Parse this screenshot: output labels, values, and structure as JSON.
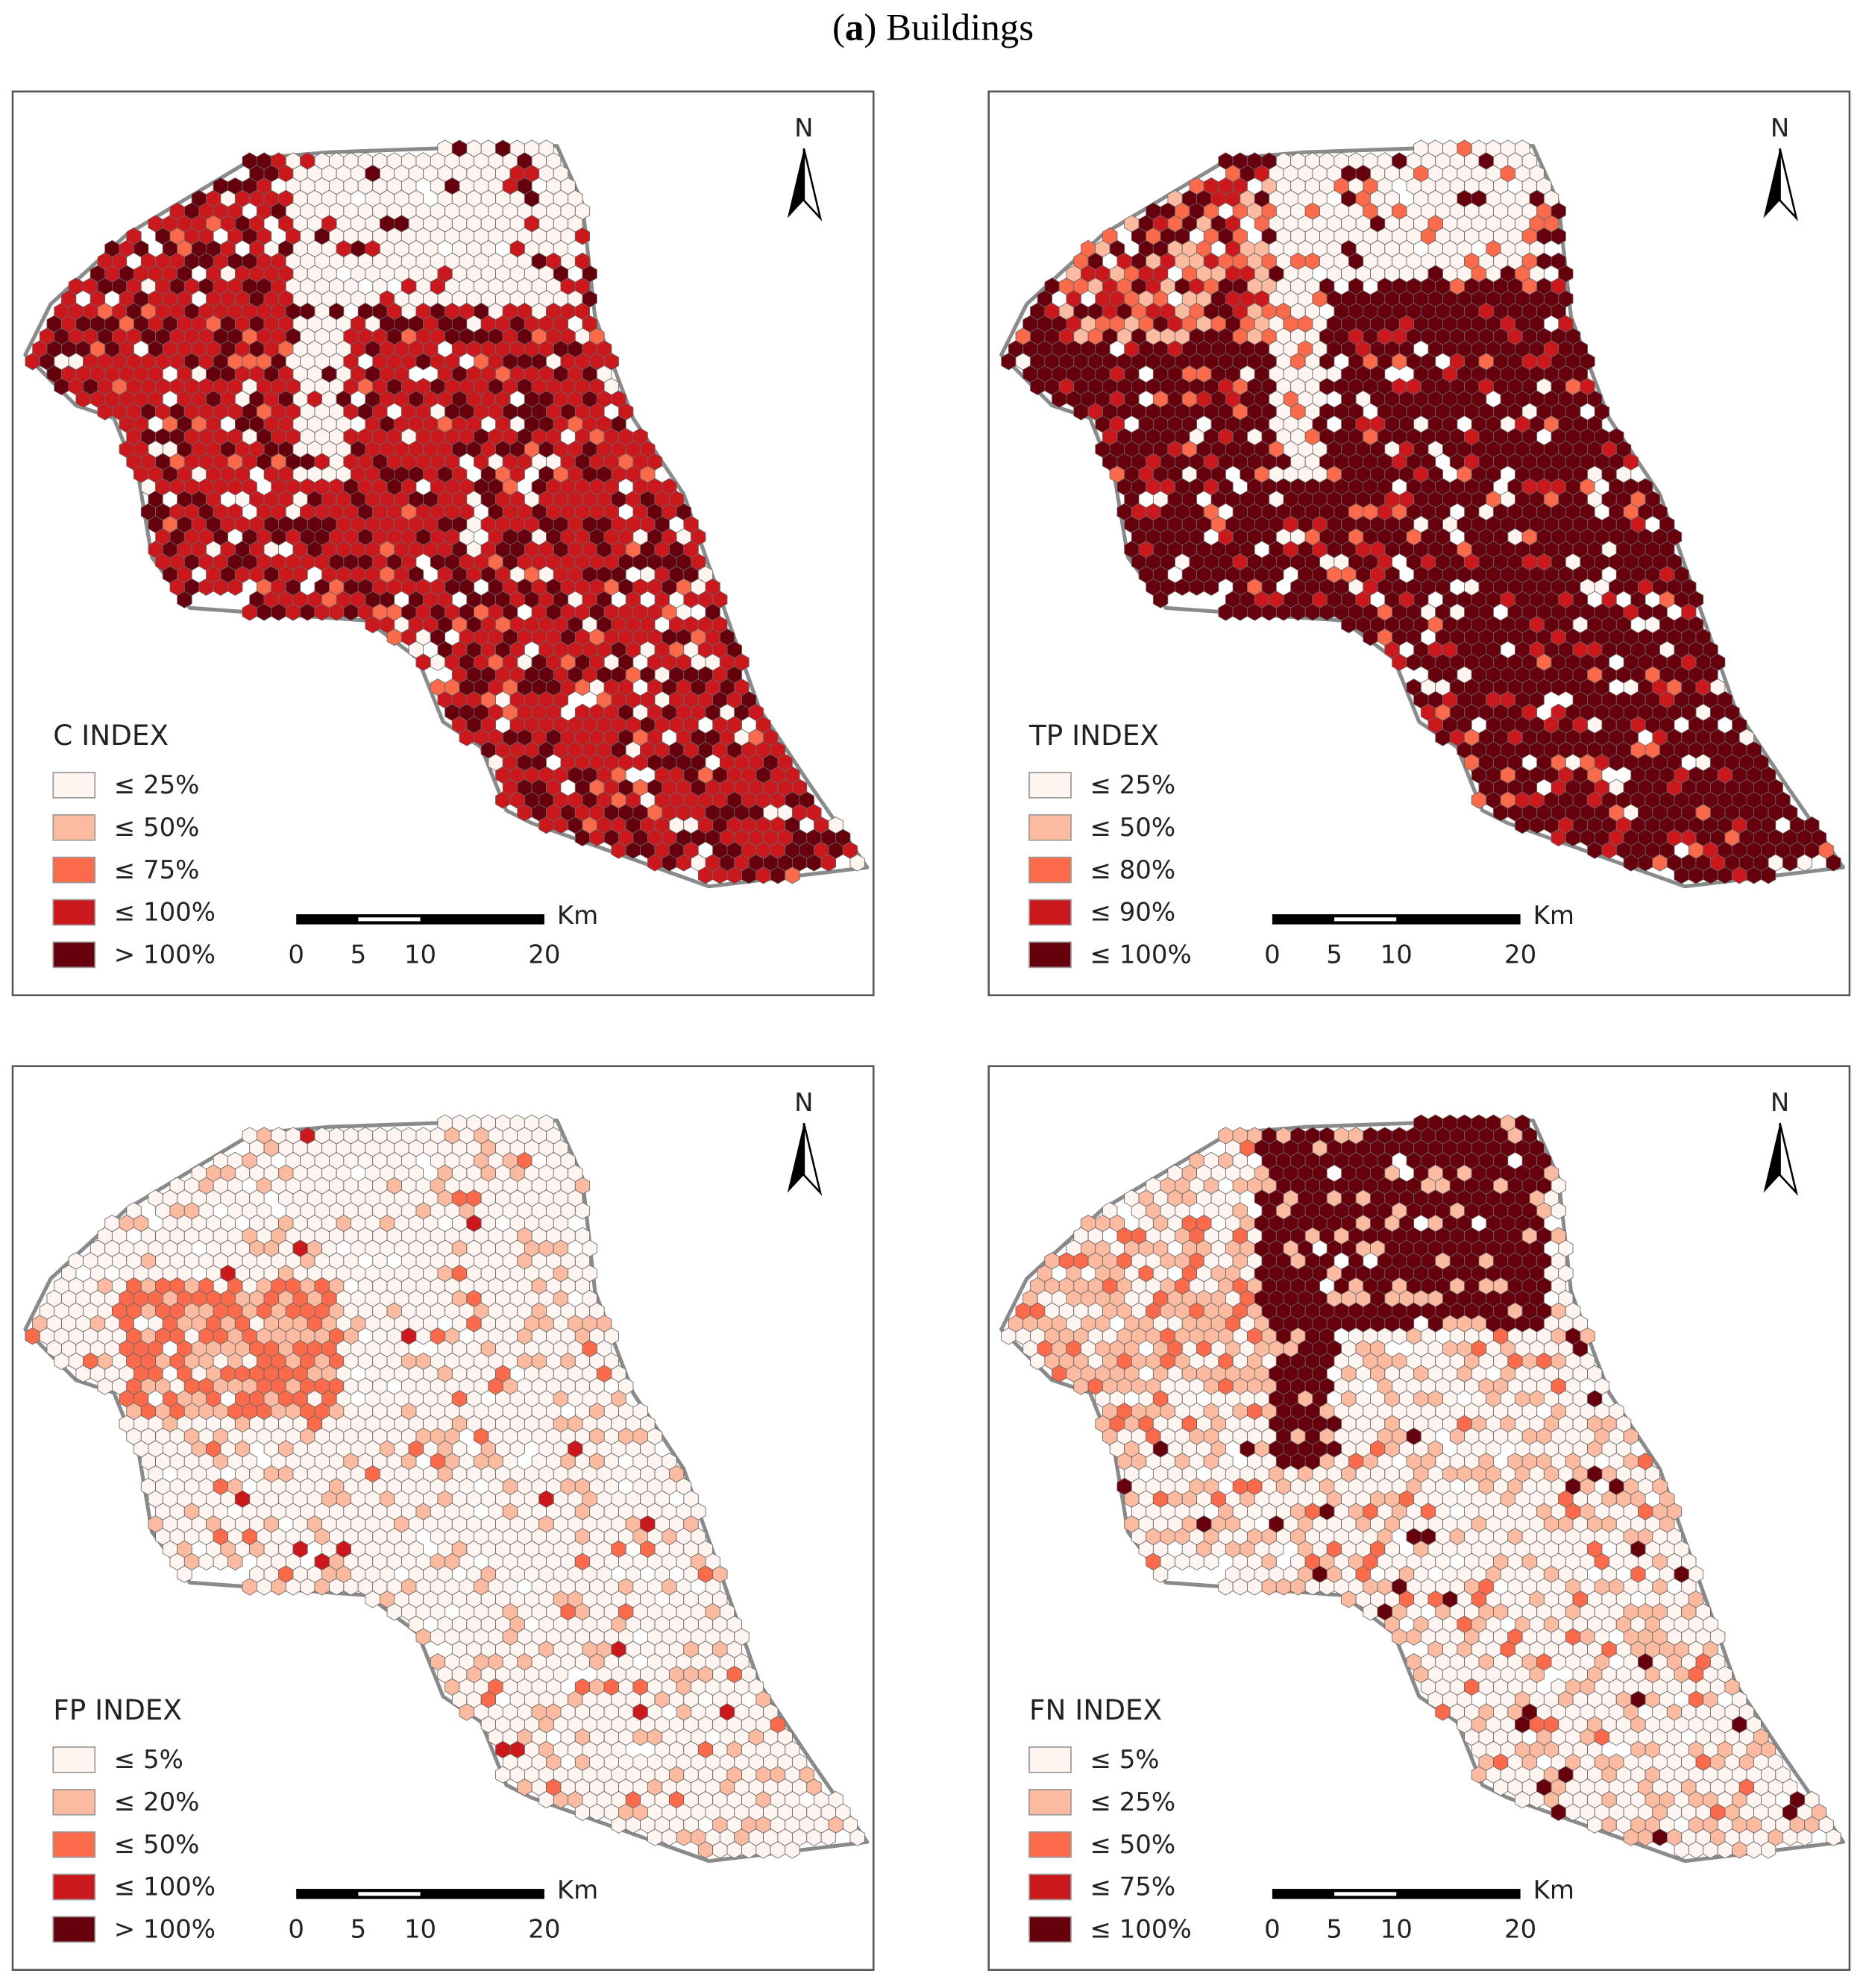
{
  "title_parts": [
    "(",
    "a",
    ") Buildings"
  ],
  "panels": [
    {
      "legend_title": "C INDEX",
      "north": "N",
      "unit": "Km",
      "scale_km": [
        0,
        5,
        10,
        20
      ],
      "legend": [
        {
          "label": "≤ 25%",
          "color": "#fff5f0"
        },
        {
          "label": "≤ 50%",
          "color": "#fcbba1"
        },
        {
          "label": "≤ 75%",
          "color": "#fb6a4a"
        },
        {
          "label": "≤ 100%",
          "color": "#cb181d"
        },
        {
          "label": "> 100%",
          "color": "#67000d"
        }
      ]
    },
    {
      "legend_title": "TP INDEX",
      "north": "N",
      "unit": "Km",
      "scale_km": [
        0,
        5,
        10,
        20
      ],
      "legend": [
        {
          "label": "≤ 25%",
          "color": "#fff5f0"
        },
        {
          "label": "≤ 50%",
          "color": "#fcbba1"
        },
        {
          "label": "≤ 80%",
          "color": "#fb6a4a"
        },
        {
          "label": "≤ 90%",
          "color": "#cb181d"
        },
        {
          "label": "≤ 100%",
          "color": "#67000d"
        }
      ]
    },
    {
      "legend_title": "FP INDEX",
      "north": "N",
      "unit": "Km",
      "scale_km": [
        0,
        5,
        10,
        20
      ],
      "legend": [
        {
          "label": "≤ 5%",
          "color": "#fff5f0"
        },
        {
          "label": "≤ 20%",
          "color": "#fcbba1"
        },
        {
          "label": "≤ 50%",
          "color": "#fb6a4a"
        },
        {
          "label": "≤ 100%",
          "color": "#cb181d"
        },
        {
          "label": "> 100%",
          "color": "#67000d"
        }
      ]
    },
    {
      "legend_title": "FN INDEX",
      "north": "N",
      "unit": "Km",
      "scale_km": [
        0,
        5,
        10,
        20
      ],
      "legend": [
        {
          "label": "≤ 5%",
          "color": "#fff5f0"
        },
        {
          "label": "≤ 25%",
          "color": "#fcbba1"
        },
        {
          "label": "≤ 50%",
          "color": "#fb6a4a"
        },
        {
          "label": "≤ 75%",
          "color": "#cb181d"
        },
        {
          "label": "≤ 100%",
          "color": "#67000d"
        }
      ]
    }
  ]
}
